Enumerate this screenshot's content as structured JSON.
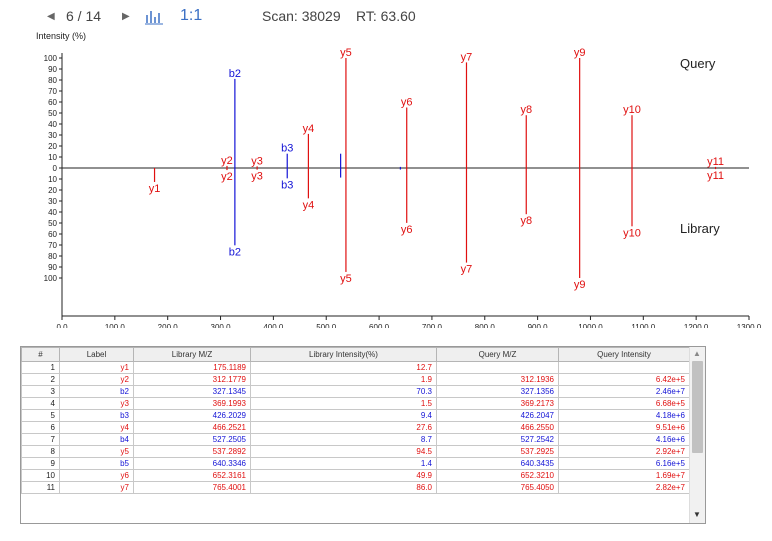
{
  "toolbar": {
    "prev_icon": "triangle-left-icon",
    "page_indicator": "6 / 14",
    "next_icon": "triangle-right-icon",
    "spectrum_icon": "bar-spectrum-icon",
    "ratio_label": "1:1",
    "scan_text": "Scan: 38029",
    "rt_text": "RT: 63.60"
  },
  "chart_data": {
    "type": "mirror-bar",
    "ylabel": "Intensity (%)",
    "xlim": [
      0,
      1300
    ],
    "ylim": [
      -100,
      100
    ],
    "x_ticks": [
      "0.0",
      "100.0",
      "200.0",
      "300.0",
      "400.0",
      "500.0",
      "600.0",
      "700.0",
      "800.0",
      "900.0",
      "1000.0",
      "1100.0",
      "1200.0",
      "1300.0"
    ],
    "y_ticks": [
      "100",
      "90",
      "80",
      "70",
      "60",
      "50",
      "40",
      "30",
      "20",
      "10",
      "0",
      "10",
      "20",
      "30",
      "40",
      "50",
      "60",
      "70",
      "80",
      "90",
      "100"
    ],
    "query_label": "Query",
    "library_label": "Library",
    "colors": {
      "y": "#e01010",
      "b": "#1414d6"
    },
    "query_peaks": [
      {
        "label": "y2",
        "mz": 312.19,
        "intensity": 1.9
      },
      {
        "label": "b2",
        "mz": 327.14,
        "intensity": 81.0
      },
      {
        "label": "y3",
        "mz": 369.22,
        "intensity": 1.5
      },
      {
        "label": "b3",
        "mz": 426.2,
        "intensity": 13.0
      },
      {
        "label": "y4",
        "mz": 466.26,
        "intensity": 31.0
      },
      {
        "label": "",
        "mz": 527.25,
        "intensity": 13.0
      },
      {
        "label": "y5",
        "mz": 537.29,
        "intensity": 100.0
      },
      {
        "label": "",
        "mz": 640.34,
        "intensity": 1.0
      },
      {
        "label": "y6",
        "mz": 652.32,
        "intensity": 55.0
      },
      {
        "label": "y7",
        "mz": 765.4,
        "intensity": 96.0
      },
      {
        "label": "y8",
        "mz": 878.5,
        "intensity": 48.0
      },
      {
        "label": "y9",
        "mz": 979.55,
        "intensity": 100.0
      },
      {
        "label": "y10",
        "mz": 1078.6,
        "intensity": 48.0
      },
      {
        "label": "y11",
        "mz": 1236.7,
        "intensity": 1.0
      }
    ],
    "library_peaks": [
      {
        "label": "y1",
        "mz": 175.12,
        "intensity": 12.7
      },
      {
        "label": "y2",
        "mz": 312.18,
        "intensity": 1.9
      },
      {
        "label": "b2",
        "mz": 327.13,
        "intensity": 70.3
      },
      {
        "label": "y3",
        "mz": 369.2,
        "intensity": 1.5
      },
      {
        "label": "b3",
        "mz": 426.2,
        "intensity": 9.4
      },
      {
        "label": "y4",
        "mz": 466.25,
        "intensity": 27.6
      },
      {
        "label": "",
        "mz": 527.25,
        "intensity": 8.7
      },
      {
        "label": "y5",
        "mz": 537.29,
        "intensity": 94.5
      },
      {
        "label": "",
        "mz": 640.33,
        "intensity": 1.4
      },
      {
        "label": "y6",
        "mz": 652.32,
        "intensity": 49.9
      },
      {
        "label": "y7",
        "mz": 765.4,
        "intensity": 86.0
      },
      {
        "label": "y8",
        "mz": 878.5,
        "intensity": 42.0
      },
      {
        "label": "y9",
        "mz": 979.55,
        "intensity": 100.0
      },
      {
        "label": "y10",
        "mz": 1078.6,
        "intensity": 53.0
      },
      {
        "label": "y11",
        "mz": 1236.7,
        "intensity": 1.0
      }
    ]
  },
  "table": {
    "headers": [
      "#",
      "Label",
      "Library M/Z",
      "Library Intensity(%)",
      "Query M/Z",
      "Query Intensity"
    ],
    "rows": [
      {
        "n": "1",
        "label": "y1",
        "lib_mz": "175.1189",
        "lib_int": "12.7",
        "q_mz": "",
        "q_int": "",
        "ion": "y"
      },
      {
        "n": "2",
        "label": "y2",
        "lib_mz": "312.1779",
        "lib_int": "1.9",
        "q_mz": "312.1936",
        "q_int": "6.42e+5",
        "ion": "y"
      },
      {
        "n": "3",
        "label": "b2",
        "lib_mz": "327.1345",
        "lib_int": "70.3",
        "q_mz": "327.1356",
        "q_int": "2.46e+7",
        "ion": "b"
      },
      {
        "n": "4",
        "label": "y3",
        "lib_mz": "369.1993",
        "lib_int": "1.5",
        "q_mz": "369.2173",
        "q_int": "6.68e+5",
        "ion": "y"
      },
      {
        "n": "5",
        "label": "b3",
        "lib_mz": "426.2029",
        "lib_int": "9.4",
        "q_mz": "426.2047",
        "q_int": "4.18e+6",
        "ion": "b"
      },
      {
        "n": "6",
        "label": "y4",
        "lib_mz": "466.2521",
        "lib_int": "27.6",
        "q_mz": "466.2550",
        "q_int": "9.51e+6",
        "ion": "y"
      },
      {
        "n": "7",
        "label": "b4",
        "lib_mz": "527.2505",
        "lib_int": "8.7",
        "q_mz": "527.2542",
        "q_int": "4.16e+6",
        "ion": "b"
      },
      {
        "n": "8",
        "label": "y5",
        "lib_mz": "537.2892",
        "lib_int": "94.5",
        "q_mz": "537.2925",
        "q_int": "2.92e+7",
        "ion": "y"
      },
      {
        "n": "9",
        "label": "b5",
        "lib_mz": "640.3346",
        "lib_int": "1.4",
        "q_mz": "640.3435",
        "q_int": "6.16e+5",
        "ion": "b"
      },
      {
        "n": "10",
        "label": "y6",
        "lib_mz": "652.3161",
        "lib_int": "49.9",
        "q_mz": "652.3210",
        "q_int": "1.69e+7",
        "ion": "y"
      },
      {
        "n": "11",
        "label": "y7",
        "lib_mz": "765.4001",
        "lib_int": "86.0",
        "q_mz": "765.4050",
        "q_int": "2.82e+7",
        "ion": "y"
      }
    ]
  },
  "scrollbar": {
    "up_icon": "scroll-up-arrow-icon",
    "down_icon": "scroll-down-arrow-icon"
  }
}
